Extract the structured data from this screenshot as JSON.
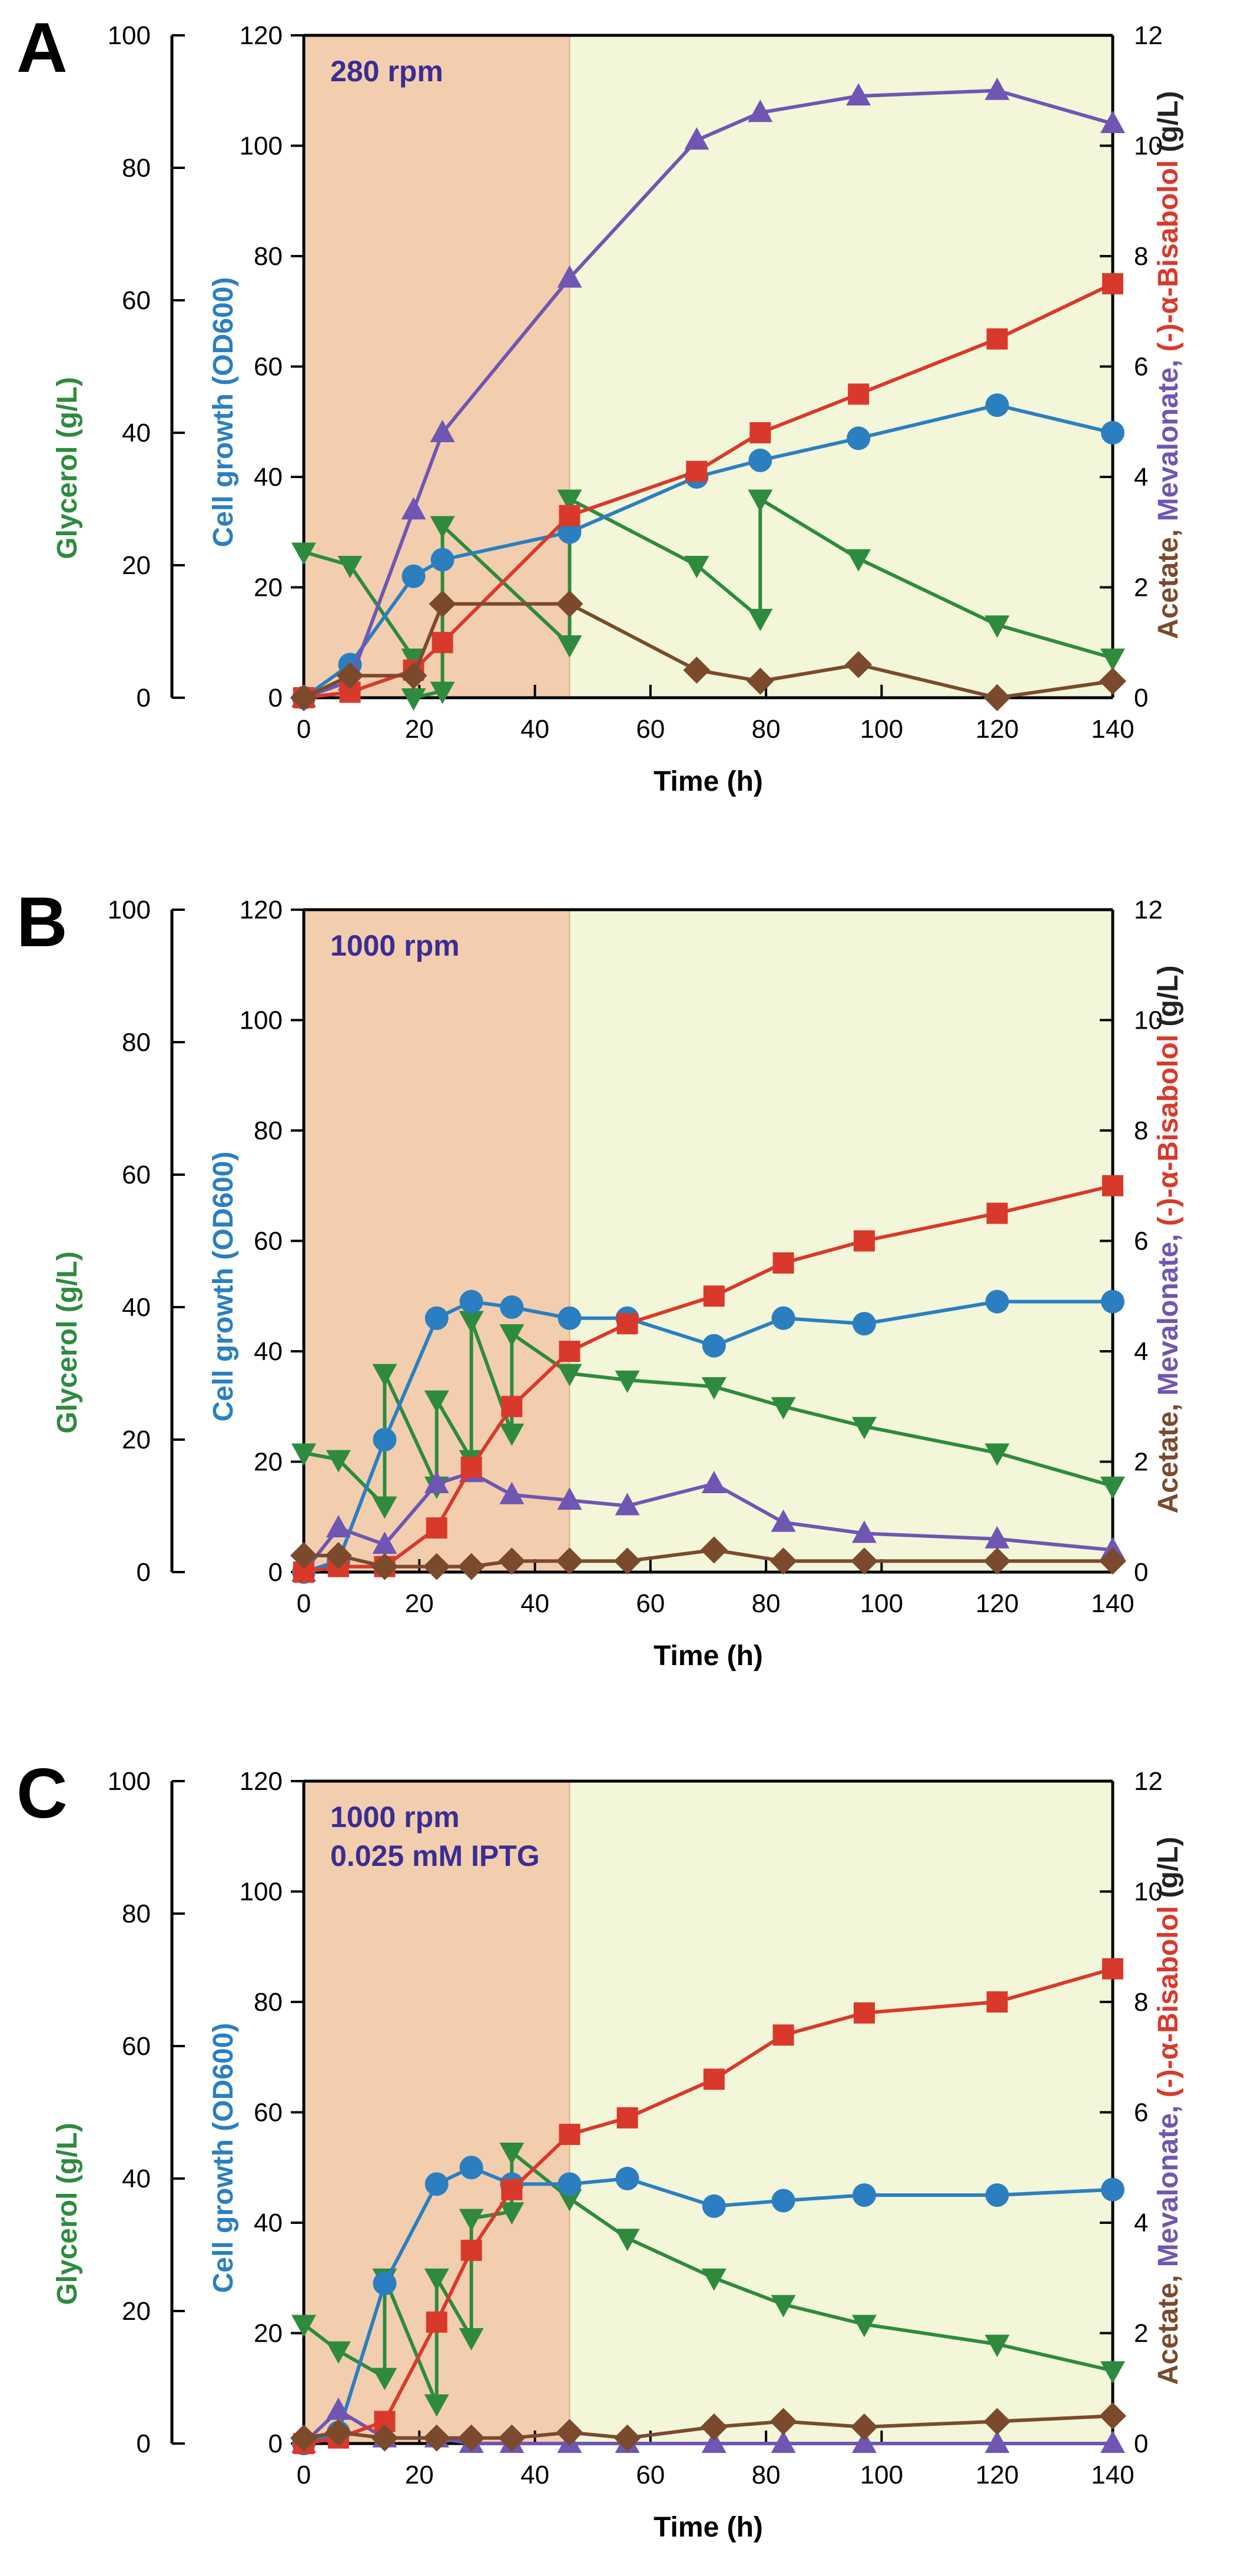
{
  "colors": {
    "glycerol": "#2e8b3e",
    "cell_growth": "#2b7fc0",
    "mevalonate": "#6f56b3",
    "bisabolol": "#d9392b",
    "acetate": "#7b4a2c",
    "batch_bg": "#f2ceae",
    "fedbatch_bg": "#f3f6d8",
    "annotation": "#3a2d93"
  },
  "chart_data": [
    {
      "panel": "A",
      "type": "line",
      "annotation_lines": [
        "280 rpm"
      ],
      "xlabel": "Time (h)",
      "xlim": [
        0,
        140
      ],
      "xticks": [
        "0",
        "20",
        "40",
        "60",
        "80",
        "100",
        "120",
        "140"
      ],
      "phase_boundary_x": 46,
      "ylabel_glycerol": "Glycerol (g/L)",
      "ylim_glycerol": [
        0,
        100
      ],
      "yticks_glycerol": [
        "0",
        "20",
        "40",
        "60",
        "80",
        "100"
      ],
      "ylabel_cell": "Cell growth (OD600)",
      "ylim_cell": [
        0,
        120
      ],
      "yticks_cell": [
        "0",
        "20",
        "40",
        "60",
        "80",
        "100",
        "120"
      ],
      "ylabel_right": {
        "acetate": "Acetate, ",
        "mevalonate": "Mevalonate, ",
        "bisabolol": "(-)-α-Bisabolol",
        "unit": " (g/L)"
      },
      "ylim_right": [
        0,
        12
      ],
      "yticks_right": [
        "0",
        "2",
        "4",
        "6",
        "8",
        "10",
        "12"
      ],
      "series": [
        {
          "name": "Glycerol",
          "axis": "glycerol",
          "marker": "tri-down",
          "x": [
            0,
            8,
            19,
            19,
            24,
            24,
            46,
            46,
            68,
            79,
            79,
            96,
            120,
            140
          ],
          "y": [
            22,
            20,
            6,
            0,
            1,
            26,
            8,
            30,
            20,
            12,
            30,
            21,
            11,
            6
          ]
        },
        {
          "name": "Cell growth",
          "axis": "cell",
          "marker": "circle",
          "x": [
            0,
            8,
            19,
            24,
            46,
            68,
            79,
            96,
            120,
            140
          ],
          "y": [
            0,
            6,
            22,
            25,
            30,
            40,
            43,
            47,
            53,
            48
          ]
        },
        {
          "name": "Mevalonate",
          "axis": "right",
          "marker": "tri-up",
          "x": [
            0,
            8,
            19,
            24,
            46,
            68,
            79,
            96,
            120,
            140
          ],
          "y": [
            0,
            0.3,
            3.4,
            4.8,
            7.6,
            10.1,
            10.6,
            10.9,
            11.0,
            10.4
          ]
        },
        {
          "name": "(-)-α-Bisabolol",
          "axis": "right",
          "marker": "square",
          "x": [
            0,
            8,
            19,
            24,
            46,
            68,
            79,
            96,
            120,
            140
          ],
          "y": [
            0,
            0.1,
            0.5,
            1.0,
            3.3,
            4.1,
            4.8,
            5.5,
            6.5,
            7.5
          ]
        },
        {
          "name": "Acetate",
          "axis": "right",
          "marker": "diamond",
          "x": [
            0,
            8,
            19,
            24,
            46,
            68,
            79,
            96,
            120,
            140
          ],
          "y": [
            0,
            0.4,
            0.4,
            1.7,
            1.7,
            0.5,
            0.3,
            0.6,
            0,
            0.3
          ]
        }
      ]
    },
    {
      "panel": "B",
      "type": "line",
      "annotation_lines": [
        "1000 rpm"
      ],
      "xlabel": "Time (h)",
      "xlim": [
        0,
        140
      ],
      "xticks": [
        "0",
        "20",
        "40",
        "60",
        "80",
        "100",
        "120",
        "140"
      ],
      "phase_boundary_x": 46,
      "ylabel_glycerol": "Glycerol (g/L)",
      "ylim_glycerol": [
        0,
        100
      ],
      "yticks_glycerol": [
        "0",
        "20",
        "40",
        "60",
        "80",
        "100"
      ],
      "ylabel_cell": "Cell growth (OD600)",
      "ylim_cell": [
        0,
        120
      ],
      "yticks_cell": [
        "0",
        "20",
        "40",
        "60",
        "80",
        "100",
        "120"
      ],
      "ylabel_right": {
        "acetate": "Acetate, ",
        "mevalonate": "Mevalonate, ",
        "bisabolol": "(-)-α-Bisabolol",
        "unit": " (g/L)"
      },
      "ylim_right": [
        0,
        12
      ],
      "yticks_right": [
        "0",
        "2",
        "4",
        "6",
        "8",
        "10",
        "12"
      ],
      "series": [
        {
          "name": "Glycerol",
          "axis": "glycerol",
          "marker": "tri-down",
          "x": [
            0,
            6,
            14,
            14,
            23,
            23,
            29,
            29,
            36,
            36,
            46,
            56,
            71,
            83,
            97,
            120,
            140
          ],
          "y": [
            18,
            17,
            10,
            30,
            13,
            26,
            17,
            38,
            21,
            36,
            30,
            29,
            28,
            25,
            22,
            18,
            13
          ]
        },
        {
          "name": "Cell growth",
          "axis": "cell",
          "marker": "circle",
          "x": [
            0,
            6,
            14,
            23,
            29,
            36,
            46,
            56,
            71,
            83,
            97,
            120,
            140
          ],
          "y": [
            0,
            2,
            24,
            46,
            49,
            48,
            46,
            46,
            41,
            46,
            45,
            49,
            49
          ]
        },
        {
          "name": "Mevalonate",
          "axis": "right",
          "marker": "tri-up",
          "x": [
            0,
            6,
            14,
            23,
            29,
            36,
            46,
            56,
            71,
            83,
            97,
            120,
            140
          ],
          "y": [
            0,
            0.8,
            0.5,
            1.6,
            1.8,
            1.4,
            1.3,
            1.2,
            1.6,
            0.9,
            0.7,
            0.6,
            0.4
          ]
        },
        {
          "name": "(-)-α-Bisabolol",
          "axis": "right",
          "marker": "square",
          "x": [
            0,
            6,
            14,
            23,
            29,
            36,
            46,
            56,
            71,
            83,
            97,
            120,
            140
          ],
          "y": [
            0,
            0.1,
            0.1,
            0.8,
            1.9,
            3.0,
            4.0,
            4.5,
            5.0,
            5.6,
            6.0,
            6.5,
            7.0
          ]
        },
        {
          "name": "Acetate",
          "axis": "right",
          "marker": "diamond",
          "x": [
            0,
            6,
            14,
            23,
            29,
            36,
            46,
            56,
            71,
            83,
            97,
            120,
            140
          ],
          "y": [
            0.3,
            0.3,
            0.1,
            0.1,
            0.1,
            0.2,
            0.2,
            0.2,
            0.4,
            0.2,
            0.2,
            0.2,
            0.2
          ]
        }
      ]
    },
    {
      "panel": "C",
      "type": "line",
      "annotation_lines": [
        "1000 rpm",
        "0.025 mM IPTG"
      ],
      "xlabel": "Time (h)",
      "xlim": [
        0,
        140
      ],
      "xticks": [
        "0",
        "20",
        "40",
        "60",
        "80",
        "100",
        "120",
        "140"
      ],
      "phase_boundary_x": 46,
      "ylabel_glycerol": "Glycerol (g/L)",
      "ylim_glycerol": [
        0,
        100
      ],
      "yticks_glycerol": [
        "0",
        "20",
        "40",
        "60",
        "80",
        "100"
      ],
      "ylabel_cell": "Cell growth (OD600)",
      "ylim_cell": [
        0,
        120
      ],
      "yticks_cell": [
        "0",
        "20",
        "40",
        "60",
        "80",
        "100",
        "120"
      ],
      "ylabel_right": {
        "acetate": "Acetate, ",
        "mevalonate": "Mevalonate, ",
        "bisabolol": "(-)-α-Bisabolol",
        "unit": "  (g/L)"
      },
      "ylim_right": [
        0,
        12
      ],
      "yticks_right": [
        "0",
        "2",
        "4",
        "6",
        "8",
        "10",
        "12"
      ],
      "series": [
        {
          "name": "Glycerol",
          "axis": "glycerol",
          "marker": "tri-down",
          "x": [
            0,
            6,
            14,
            14,
            23,
            23,
            29,
            29,
            36,
            36,
            46,
            56,
            71,
            83,
            97,
            120,
            140
          ],
          "y": [
            18,
            14,
            10,
            25,
            6,
            25,
            16,
            34,
            35,
            44,
            37,
            31,
            25,
            21,
            18,
            15,
            11
          ]
        },
        {
          "name": "Cell growth",
          "axis": "cell",
          "marker": "circle",
          "x": [
            0,
            6,
            14,
            23,
            29,
            36,
            46,
            56,
            71,
            83,
            97,
            120,
            140
          ],
          "y": [
            0,
            2,
            29,
            47,
            50,
            47,
            47,
            48,
            43,
            44,
            45,
            45,
            46
          ]
        },
        {
          "name": "Mevalonate",
          "axis": "right",
          "marker": "tri-up",
          "x": [
            0,
            6,
            14,
            23,
            29,
            36,
            46,
            56,
            71,
            83,
            97,
            120,
            140
          ],
          "y": [
            0,
            0.6,
            0.1,
            0.1,
            0,
            0,
            0,
            0,
            0,
            0,
            0,
            0,
            0
          ]
        },
        {
          "name": "(-)-α-Bisabolol",
          "axis": "right",
          "marker": "square",
          "x": [
            0,
            6,
            14,
            23,
            29,
            36,
            46,
            56,
            71,
            83,
            97,
            120,
            140
          ],
          "y": [
            0,
            0.1,
            0.4,
            2.2,
            3.5,
            4.6,
            5.6,
            5.9,
            6.6,
            7.4,
            7.8,
            8.0,
            8.6
          ]
        },
        {
          "name": "Acetate",
          "axis": "right",
          "marker": "diamond",
          "x": [
            0,
            6,
            14,
            23,
            29,
            36,
            46,
            56,
            71,
            83,
            97,
            120,
            140
          ],
          "y": [
            0.1,
            0.2,
            0.1,
            0.1,
            0.1,
            0.1,
            0.2,
            0.1,
            0.3,
            0.4,
            0.3,
            0.4,
            0.5
          ]
        }
      ]
    }
  ]
}
